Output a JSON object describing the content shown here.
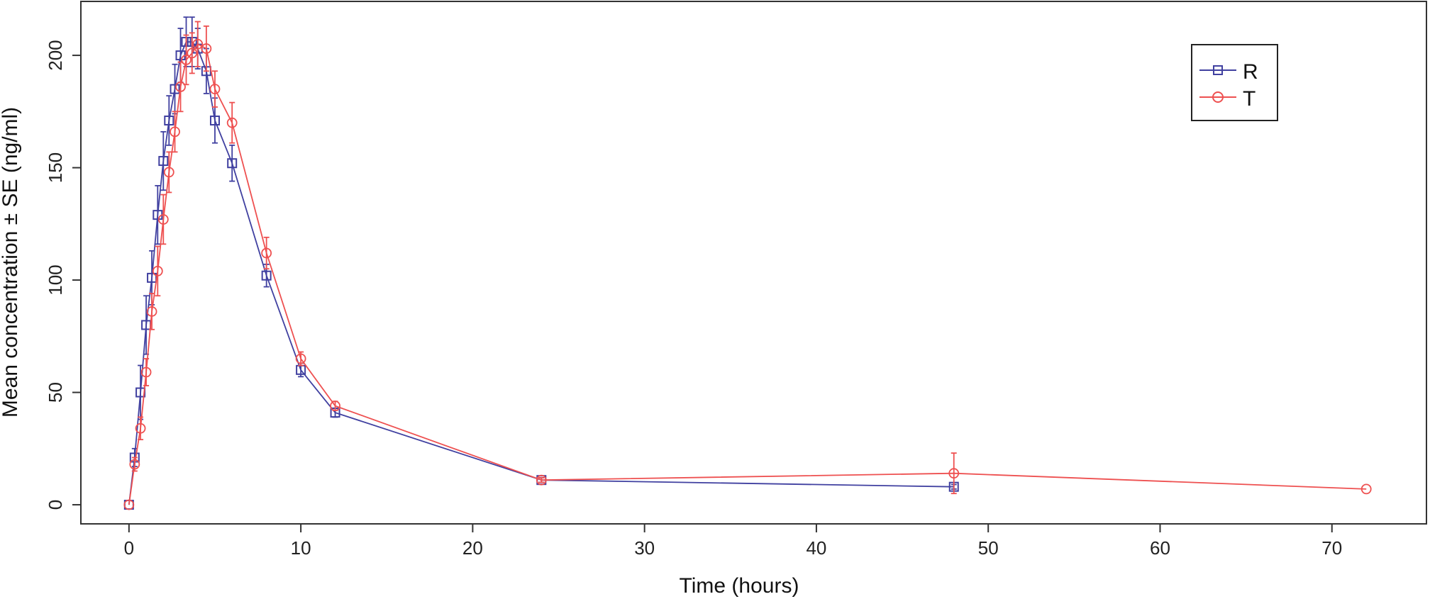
{
  "chart_data": {
    "type": "line",
    "xlabel": "Time (hours)",
    "ylabel": "Mean concentration ± SE (ng/ml)",
    "xlim": [
      -2.8,
      75.5
    ],
    "ylim": [
      -8.5,
      224
    ],
    "xticks": [
      0,
      10,
      20,
      30,
      40,
      50,
      60,
      70
    ],
    "yticks": [
      0,
      50,
      100,
      150,
      200
    ],
    "grid": false,
    "legend_position": "top-right",
    "series": [
      {
        "name": "R",
        "color": "#4040a0",
        "marker": "square",
        "x": [
          0,
          0.33,
          0.67,
          1,
          1.33,
          1.67,
          2,
          2.33,
          2.67,
          3,
          3.33,
          3.67,
          4,
          4.5,
          5,
          6,
          8,
          10,
          12,
          24,
          48
        ],
        "y": [
          0,
          21,
          50,
          80,
          101,
          129,
          153,
          171,
          185,
          200,
          206,
          206,
          203,
          193,
          171,
          152,
          102,
          60,
          41,
          11,
          8
        ],
        "se": [
          0,
          4,
          12,
          13,
          12,
          13,
          13,
          11,
          11,
          12,
          11,
          11,
          9,
          10,
          10,
          8,
          5,
          3,
          2,
          1,
          1
        ]
      },
      {
        "name": "T",
        "color": "#ee5050",
        "marker": "circle",
        "x": [
          0,
          0.33,
          0.67,
          1,
          1.33,
          1.67,
          2,
          2.33,
          2.67,
          3,
          3.33,
          3.67,
          4,
          4.5,
          5,
          6,
          8,
          10,
          12,
          24,
          48,
          72
        ],
        "y": [
          0,
          18,
          34,
          59,
          86,
          104,
          127,
          148,
          166,
          186,
          198,
          201,
          205,
          203,
          185,
          170,
          112,
          65,
          44,
          11,
          14,
          7
        ],
        "se": [
          0,
          3,
          5,
          6,
          8,
          11,
          11,
          9,
          9,
          11,
          11,
          9,
          10,
          10,
          8,
          9,
          7,
          3,
          2,
          1,
          9,
          0
        ]
      }
    ]
  }
}
